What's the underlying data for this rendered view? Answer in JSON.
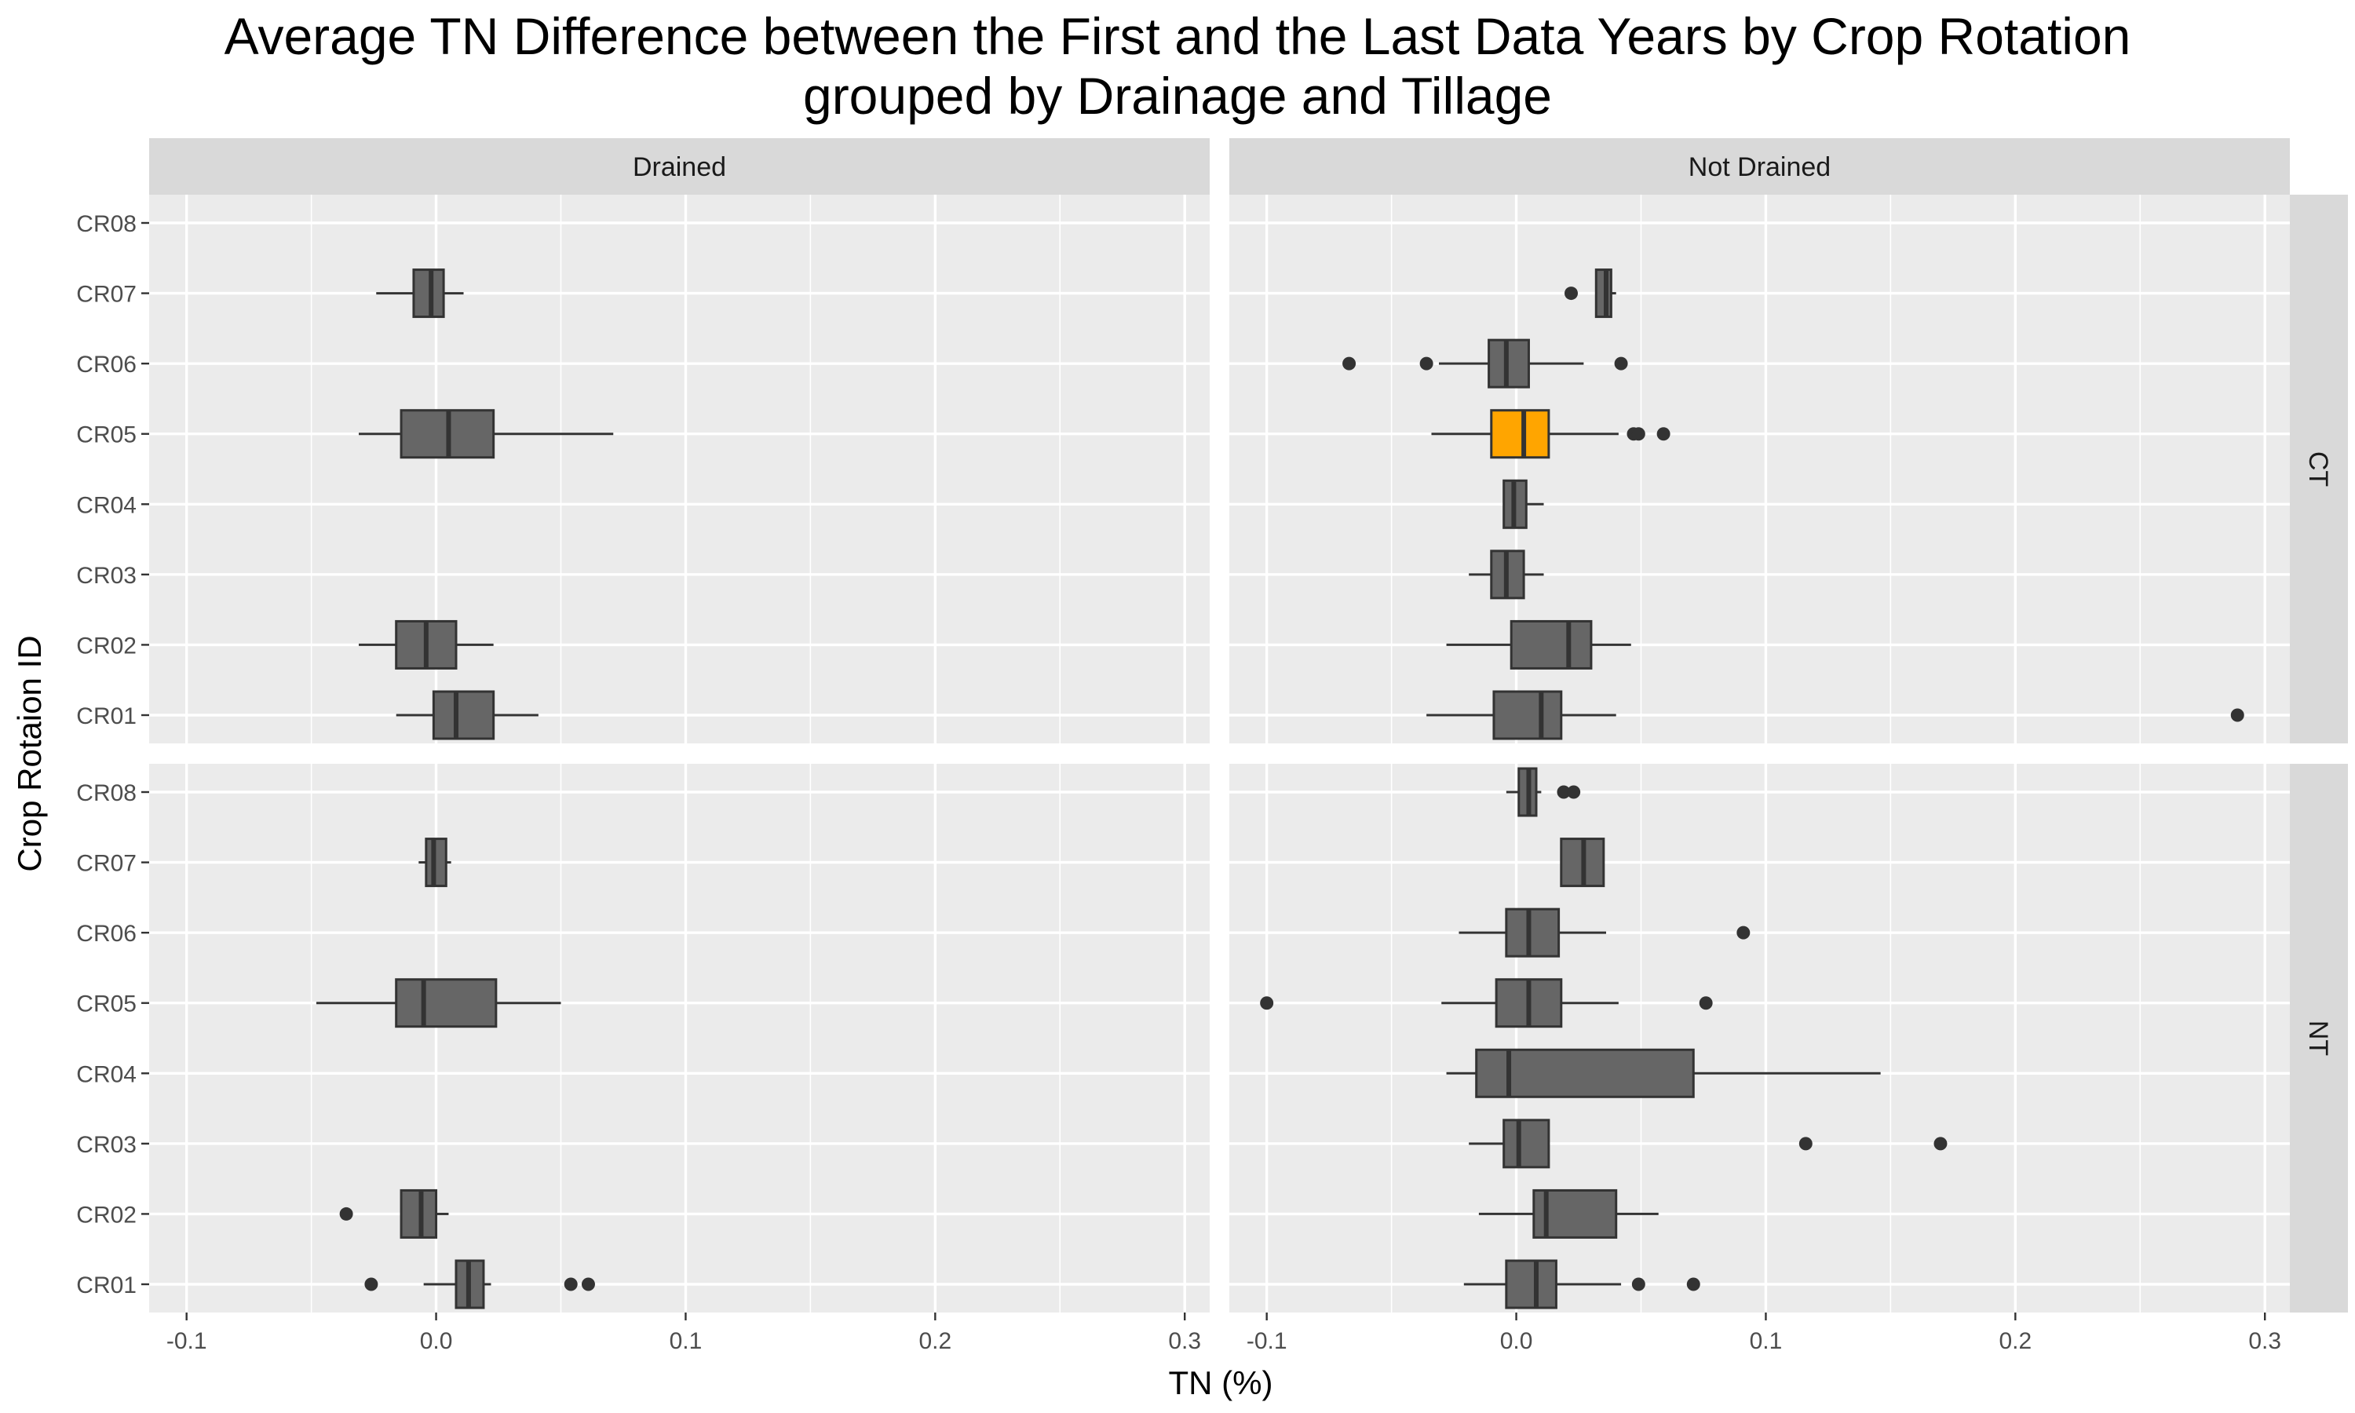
{
  "chart_data": {
    "type": "boxplot",
    "title_lines": [
      "Average TN Difference between the First and the Last Data Years by Crop Rotation",
      "grouped by Drainage and Tillage"
    ],
    "xlabel": "TN (%)",
    "ylabel": "Crop Rotaion ID",
    "xlim": [
      -0.115,
      0.31
    ],
    "x_ticks": [
      -0.1,
      0.0,
      0.1,
      0.2,
      0.3
    ],
    "x_tick_labels": [
      "-0.1",
      "0.0",
      "0.1",
      "0.2",
      "0.3"
    ],
    "categories": [
      "CR08",
      "CR07",
      "CR06",
      "CR05",
      "CR04",
      "CR03",
      "CR02",
      "CR01"
    ],
    "facet_columns": [
      "Drained",
      "Not Drained"
    ],
    "facet_rows": [
      "CT",
      "NT"
    ],
    "grid": true,
    "colors": {
      "panel_bg": "#ebebeb",
      "strip_bg": "#d9d9d9",
      "grid": "#ffffff",
      "box_fill": "#666666",
      "box_highlight": "#ffa500",
      "box_line": "#333333",
      "outlier": "#333333"
    },
    "panels": [
      {
        "col": "Drained",
        "row": "CT",
        "boxes": [
          {
            "category": "CR07",
            "min": -0.024,
            "q1": -0.009,
            "median": -0.002,
            "q3": 0.003,
            "max": 0.011,
            "outliers": []
          },
          {
            "category": "CR05",
            "min": -0.031,
            "q1": -0.014,
            "median": 0.005,
            "q3": 0.023,
            "max": 0.071,
            "outliers": []
          },
          {
            "category": "CR02",
            "min": -0.031,
            "q1": -0.016,
            "median": -0.004,
            "q3": 0.008,
            "max": 0.023,
            "outliers": []
          },
          {
            "category": "CR01",
            "min": -0.016,
            "q1": -0.001,
            "median": 0.008,
            "q3": 0.023,
            "max": 0.041,
            "outliers": []
          }
        ]
      },
      {
        "col": "Not Drained",
        "row": "CT",
        "boxes": [
          {
            "category": "CR07",
            "min": 0.032,
            "q1": 0.032,
            "median": 0.036,
            "q3": 0.038,
            "max": 0.04,
            "outliers": [
              0.022
            ]
          },
          {
            "category": "CR06",
            "min": -0.031,
            "q1": -0.011,
            "median": -0.004,
            "q3": 0.005,
            "max": 0.027,
            "outliers": [
              -0.067,
              -0.036,
              0.042
            ]
          },
          {
            "category": "CR05",
            "min": -0.034,
            "q1": -0.01,
            "median": 0.003,
            "q3": 0.013,
            "max": 0.041,
            "outliers": [
              0.047,
              0.049,
              0.059
            ],
            "highlight": true
          },
          {
            "category": "CR04",
            "min": -0.005,
            "q1": -0.005,
            "median": -0.001,
            "q3": 0.004,
            "max": 0.011,
            "outliers": []
          },
          {
            "category": "CR03",
            "min": -0.019,
            "q1": -0.01,
            "median": -0.004,
            "q3": 0.003,
            "max": 0.011,
            "outliers": []
          },
          {
            "category": "CR02",
            "min": -0.028,
            "q1": -0.002,
            "median": 0.021,
            "q3": 0.03,
            "max": 0.046,
            "outliers": []
          },
          {
            "category": "CR01",
            "min": -0.036,
            "q1": -0.009,
            "median": 0.01,
            "q3": 0.018,
            "max": 0.04,
            "outliers": [
              0.289
            ]
          }
        ]
      },
      {
        "col": "Drained",
        "row": "NT",
        "boxes": [
          {
            "category": "CR07",
            "min": -0.007,
            "q1": -0.004,
            "median": -0.001,
            "q3": 0.004,
            "max": 0.006,
            "outliers": []
          },
          {
            "category": "CR05",
            "min": -0.048,
            "q1": -0.016,
            "median": -0.005,
            "q3": 0.024,
            "max": 0.05,
            "outliers": []
          },
          {
            "category": "CR02",
            "min": -0.014,
            "q1": -0.014,
            "median": -0.006,
            "q3": 0.0,
            "max": 0.005,
            "outliers": [
              -0.036
            ]
          },
          {
            "category": "CR01",
            "min": -0.005,
            "q1": 0.008,
            "median": 0.013,
            "q3": 0.019,
            "max": 0.022,
            "outliers": [
              -0.026,
              0.054,
              0.061
            ]
          }
        ]
      },
      {
        "col": "Not Drained",
        "row": "NT",
        "boxes": [
          {
            "category": "CR08",
            "min": -0.004,
            "q1": 0.001,
            "median": 0.005,
            "q3": 0.008,
            "max": 0.01,
            "outliers": [
              0.019,
              0.023
            ]
          },
          {
            "category": "CR07",
            "min": 0.018,
            "q1": 0.018,
            "median": 0.027,
            "q3": 0.035,
            "max": 0.035,
            "outliers": []
          },
          {
            "category": "CR06",
            "min": -0.023,
            "q1": -0.004,
            "median": 0.005,
            "q3": 0.017,
            "max": 0.036,
            "outliers": [
              0.091
            ]
          },
          {
            "category": "CR05",
            "min": -0.03,
            "q1": -0.008,
            "median": 0.005,
            "q3": 0.018,
            "max": 0.041,
            "outliers": [
              -0.1,
              0.076
            ]
          },
          {
            "category": "CR04",
            "min": -0.028,
            "q1": -0.016,
            "median": -0.003,
            "q3": 0.071,
            "max": 0.146,
            "outliers": []
          },
          {
            "category": "CR03",
            "min": -0.019,
            "q1": -0.005,
            "median": 0.001,
            "q3": 0.013,
            "max": 0.013,
            "outliers": [
              0.116,
              0.17
            ]
          },
          {
            "category": "CR02",
            "min": -0.015,
            "q1": 0.007,
            "median": 0.012,
            "q3": 0.04,
            "max": 0.057,
            "outliers": []
          },
          {
            "category": "CR01",
            "min": -0.021,
            "q1": -0.004,
            "median": 0.008,
            "q3": 0.016,
            "max": 0.042,
            "outliers": [
              0.049,
              0.071
            ]
          }
        ]
      }
    ]
  }
}
